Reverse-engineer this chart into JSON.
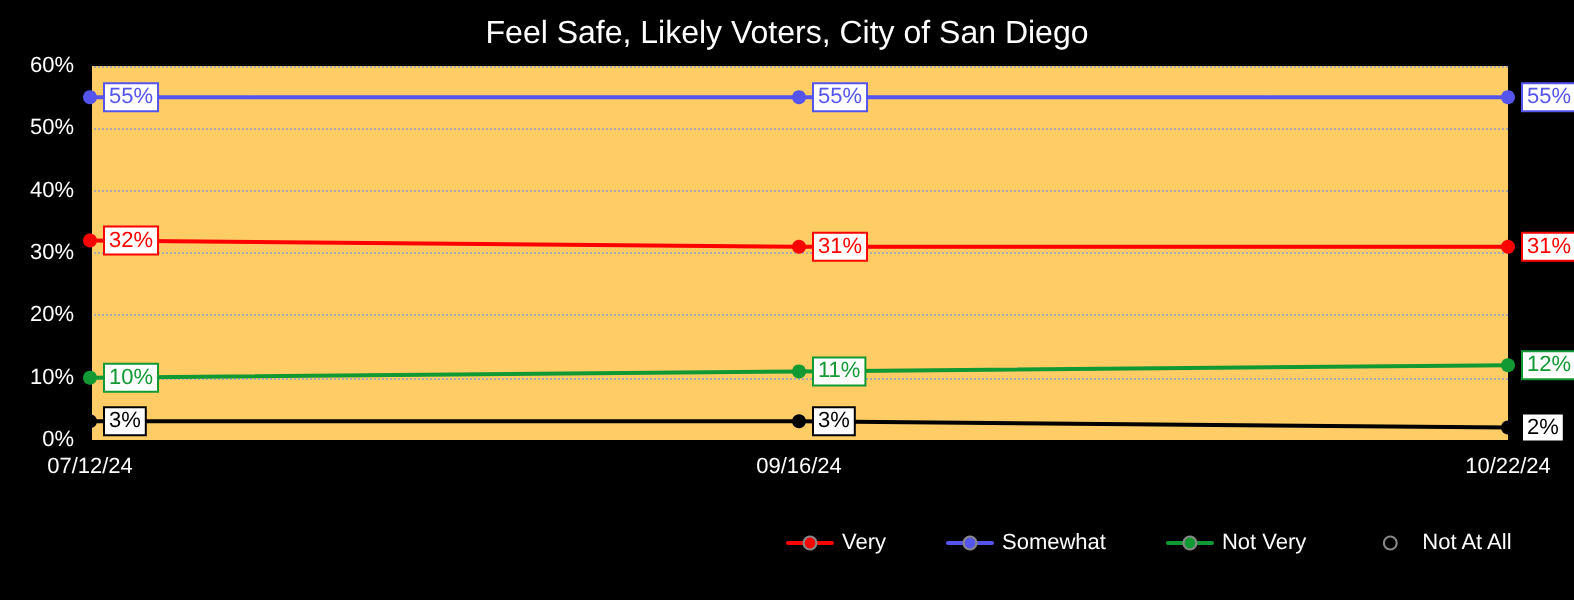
{
  "chart_data": {
    "type": "line",
    "title": "Feel Safe, Likely Voters, City of San Diego",
    "categories": [
      "07/12/24",
      "09/16/24",
      "10/22/24"
    ],
    "series": [
      {
        "name": "Very",
        "color": "#ff0000",
        "values": [
          32,
          31,
          31
        ],
        "value_labels": [
          "32%",
          "31%",
          "31%"
        ]
      },
      {
        "name": "Somewhat",
        "color": "#5555ee",
        "values": [
          55,
          55,
          55
        ],
        "value_labels": [
          "55%",
          "55%",
          "55%"
        ]
      },
      {
        "name": "Not Very",
        "color": "#119933",
        "values": [
          10,
          11,
          12
        ],
        "value_labels": [
          "10%",
          "11%",
          "12%"
        ]
      },
      {
        "name": "Not At All",
        "color": "#000000",
        "values": [
          3,
          3,
          2
        ],
        "value_labels": [
          "3%",
          "3%",
          "2%"
        ]
      }
    ],
    "ylim": [
      0,
      60
    ],
    "yticks": [
      {
        "value": 0,
        "label": "0%"
      },
      {
        "value": 10,
        "label": "10%"
      },
      {
        "value": 20,
        "label": "20%"
      },
      {
        "value": 30,
        "label": "30%"
      },
      {
        "value": 40,
        "label": "40%"
      },
      {
        "value": 50,
        "label": "50%"
      },
      {
        "value": 60,
        "label": "60%"
      }
    ],
    "grid": "y",
    "legend": "bottom right",
    "marker": "circle",
    "line_style": "solid"
  }
}
